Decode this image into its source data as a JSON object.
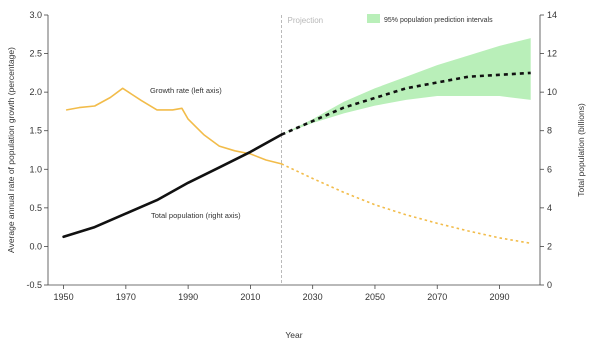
{
  "chart_data": {
    "type": "line",
    "xlabel": "Year",
    "ylabel_left": "Average annual rate of population growth (percentage)",
    "ylabel_right": "Total population (billions)",
    "xlim": [
      1945,
      2103
    ],
    "xticks": [
      1950,
      1970,
      1990,
      2010,
      2030,
      2050,
      2070,
      2090
    ],
    "ylim_left": [
      -0.5,
      3.0
    ],
    "yticks_left": [
      "-0.5",
      "0.0",
      "0.5",
      "1.0",
      "1.5",
      "2.0",
      "2.5",
      "3.0"
    ],
    "ylim_right": [
      0,
      14
    ],
    "yticks_right": [
      "0",
      "2",
      "4",
      "6",
      "8",
      "10",
      "12",
      "14"
    ],
    "projection_year": 2020,
    "projection_label": "Projection",
    "grid": false,
    "legend": {
      "position": "top",
      "label": "95% population prediction intervals",
      "color": "#b9efb9"
    },
    "annotations": {
      "growth": "Growth rate (left axis)",
      "population": "Total population (right axis)"
    },
    "series": [
      {
        "name": "Growth rate (left axis)",
        "axis": "left",
        "color": "#f2bc4a",
        "x": [
          1951,
          1955,
          1960,
          1965,
          1969,
          1972,
          1975,
          1980,
          1985,
          1988,
          1990,
          1995,
          2000,
          2005,
          2010,
          2015,
          2020
        ],
        "y": [
          1.77,
          1.8,
          1.82,
          1.93,
          2.05,
          1.97,
          1.89,
          1.77,
          1.77,
          1.79,
          1.65,
          1.45,
          1.3,
          1.24,
          1.2,
          1.12,
          1.07
        ]
      },
      {
        "name": "Growth rate projection",
        "axis": "left",
        "color": "#f2bc4a",
        "dashed": true,
        "x": [
          2020,
          2030,
          2040,
          2050,
          2060,
          2070,
          2080,
          2090,
          2100
        ],
        "y": [
          1.07,
          0.88,
          0.7,
          0.54,
          0.41,
          0.3,
          0.2,
          0.11,
          0.04
        ]
      },
      {
        "name": "Total population (right axis)",
        "axis": "right",
        "color": "#111111",
        "x": [
          1950,
          1960,
          1970,
          1980,
          1990,
          2000,
          2010,
          2020
        ],
        "y": [
          2.5,
          3.0,
          3.7,
          4.4,
          5.3,
          6.1,
          6.9,
          7.8
        ]
      },
      {
        "name": "Total population projection",
        "axis": "right",
        "color": "#111111",
        "dashed": true,
        "x": [
          2020,
          2030,
          2040,
          2050,
          2060,
          2070,
          2080,
          2090,
          2100
        ],
        "y": [
          7.8,
          8.5,
          9.2,
          9.7,
          10.2,
          10.5,
          10.8,
          10.9,
          11.0
        ]
      }
    ],
    "interval": {
      "x": [
        2020,
        2030,
        2040,
        2050,
        2060,
        2070,
        2080,
        2090,
        2100
      ],
      "lower": [
        7.8,
        8.4,
        8.9,
        9.3,
        9.6,
        9.8,
        9.8,
        9.8,
        9.6
      ],
      "upper": [
        7.8,
        8.6,
        9.5,
        10.2,
        10.8,
        11.4,
        11.9,
        12.4,
        12.8
      ]
    }
  }
}
